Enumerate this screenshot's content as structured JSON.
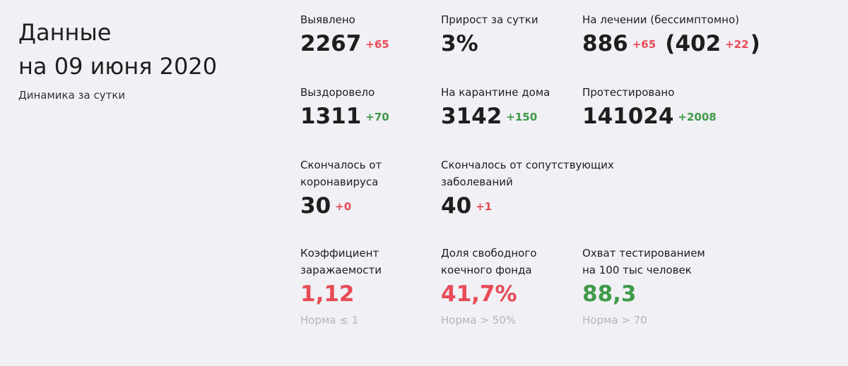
{
  "header": {
    "title_line1": "Данные",
    "title_line2": "на 09 июня 2020",
    "subtitle": "Динамика за сутки"
  },
  "stats": {
    "detected": {
      "label": "Выявлено",
      "value": "2267",
      "delta": "+65"
    },
    "growth": {
      "label": "Прирост за сутки",
      "value": "3%"
    },
    "treatment": {
      "label": "На лечении (бессимптомно)",
      "value": "886",
      "delta": "+65",
      "asym_value": "402",
      "asym_delta": "+22",
      "open_paren": "(",
      "close_paren": ")"
    },
    "recovered": {
      "label": "Выздоровело",
      "value": "1311",
      "delta": "+70"
    },
    "home_quarantine": {
      "label": "На карантине дома",
      "value": "3142",
      "delta": "+150"
    },
    "tested": {
      "label": "Протестировано",
      "value": "141024",
      "delta": "+2008"
    },
    "died_covid": {
      "label_line1": "Скончалось от",
      "label_line2": "коронавируса",
      "value": "30",
      "delta": "+0"
    },
    "died_other": {
      "label_line1": "Скончалось от сопутствующих",
      "label_line2": "заболеваний",
      "value": "40",
      "delta": "+1"
    }
  },
  "indicators": {
    "infection_rate": {
      "label_line1": "Коэффициент",
      "label_line2": "заражаемости",
      "value": "1,12",
      "norm": "Норма ≤ 1",
      "color": "#e84b55"
    },
    "free_beds": {
      "label_line1": "Доля свободного",
      "label_line2": "коечного фонда",
      "value": "41,7%",
      "norm": "Норма > 50%",
      "color": "#e84b55"
    },
    "testing_coverage": {
      "label_line1": "Охват тестированием",
      "label_line2": "на 100 тыс человек",
      "value": "88,3",
      "norm": "Норма > 70",
      "color": "#3f9a48"
    }
  },
  "colors": {
    "background": "#f0f0f5",
    "negative": "#e84b55",
    "positive": "#3f9a48",
    "norm_text": "#b4b4bc"
  }
}
